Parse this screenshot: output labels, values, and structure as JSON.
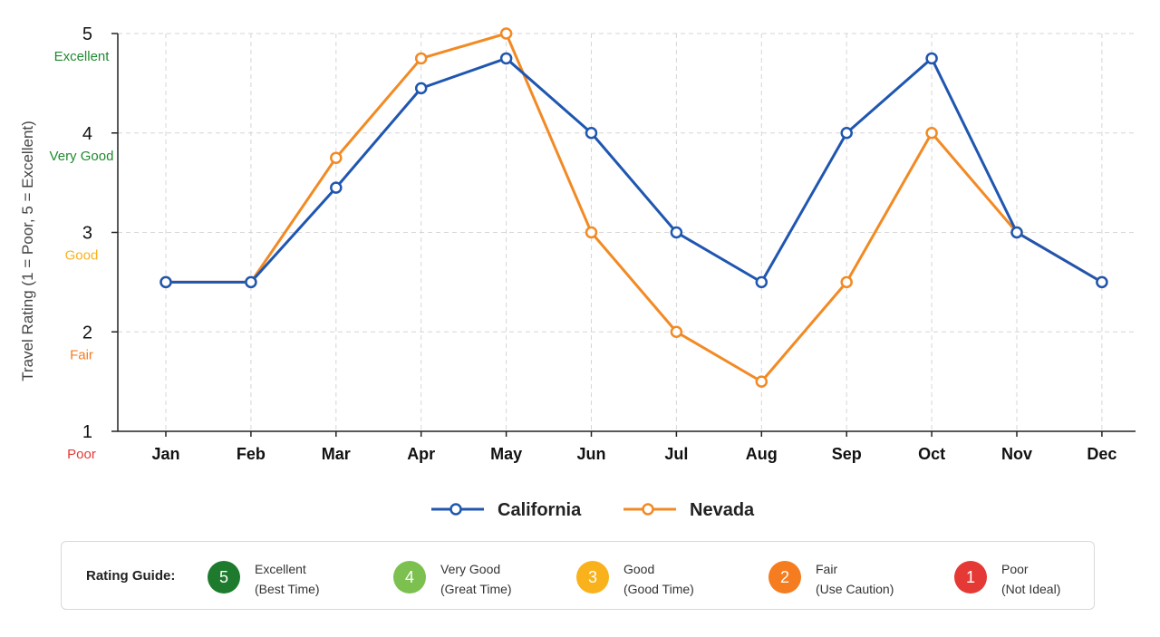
{
  "chart_data": {
    "type": "line",
    "ylabel": "Travel Rating (1 = Poor, 5 = Excellent)",
    "xlabel": "",
    "title": "",
    "categories": [
      "Jan",
      "Feb",
      "Mar",
      "Apr",
      "May",
      "Jun",
      "Jul",
      "Aug",
      "Sep",
      "Oct",
      "Nov",
      "Dec"
    ],
    "ylim": [
      1,
      5
    ],
    "yticks": [
      1,
      2,
      3,
      4,
      5
    ],
    "ytick_labels": {
      "1": "Poor",
      "2": "Fair",
      "3": "Good",
      "4": "Very Good",
      "5": "Excellent"
    },
    "ytick_label_colors": {
      "1": "#e53935",
      "2": "#f57c1f",
      "3": "#f9b21c",
      "4": "#1f8a2e",
      "5": "#1f8a2e"
    },
    "grid": true,
    "legend_position": "bottom-center",
    "series": [
      {
        "name": "California",
        "color": "#1f56b0",
        "values": [
          2.5,
          2.5,
          3.45,
          4.45,
          4.75,
          4.0,
          3.0,
          2.5,
          4.0,
          4.75,
          3.0,
          2.5
        ]
      },
      {
        "name": "Nevada",
        "color": "#f28a24",
        "values": [
          2.5,
          2.5,
          3.75,
          4.75,
          5.0,
          3.0,
          2.0,
          1.5,
          2.5,
          4.0,
          3.0,
          2.5
        ]
      }
    ]
  },
  "rating_guide": {
    "title": "Rating Guide:",
    "items": [
      {
        "number": "5",
        "label": "Excellent",
        "sub": "(Best Time)",
        "color": "#1e7b2d"
      },
      {
        "number": "4",
        "label": "Very Good",
        "sub": "(Great Time)",
        "color": "#7cc04f"
      },
      {
        "number": "3",
        "label": "Good",
        "sub": "(Good Time)",
        "color": "#f9b21c"
      },
      {
        "number": "2",
        "label": "Fair",
        "sub": "(Use Caution)",
        "color": "#f57c1f"
      },
      {
        "number": "1",
        "label": "Poor",
        "sub": "(Not Ideal)",
        "color": "#e53935"
      }
    ]
  }
}
